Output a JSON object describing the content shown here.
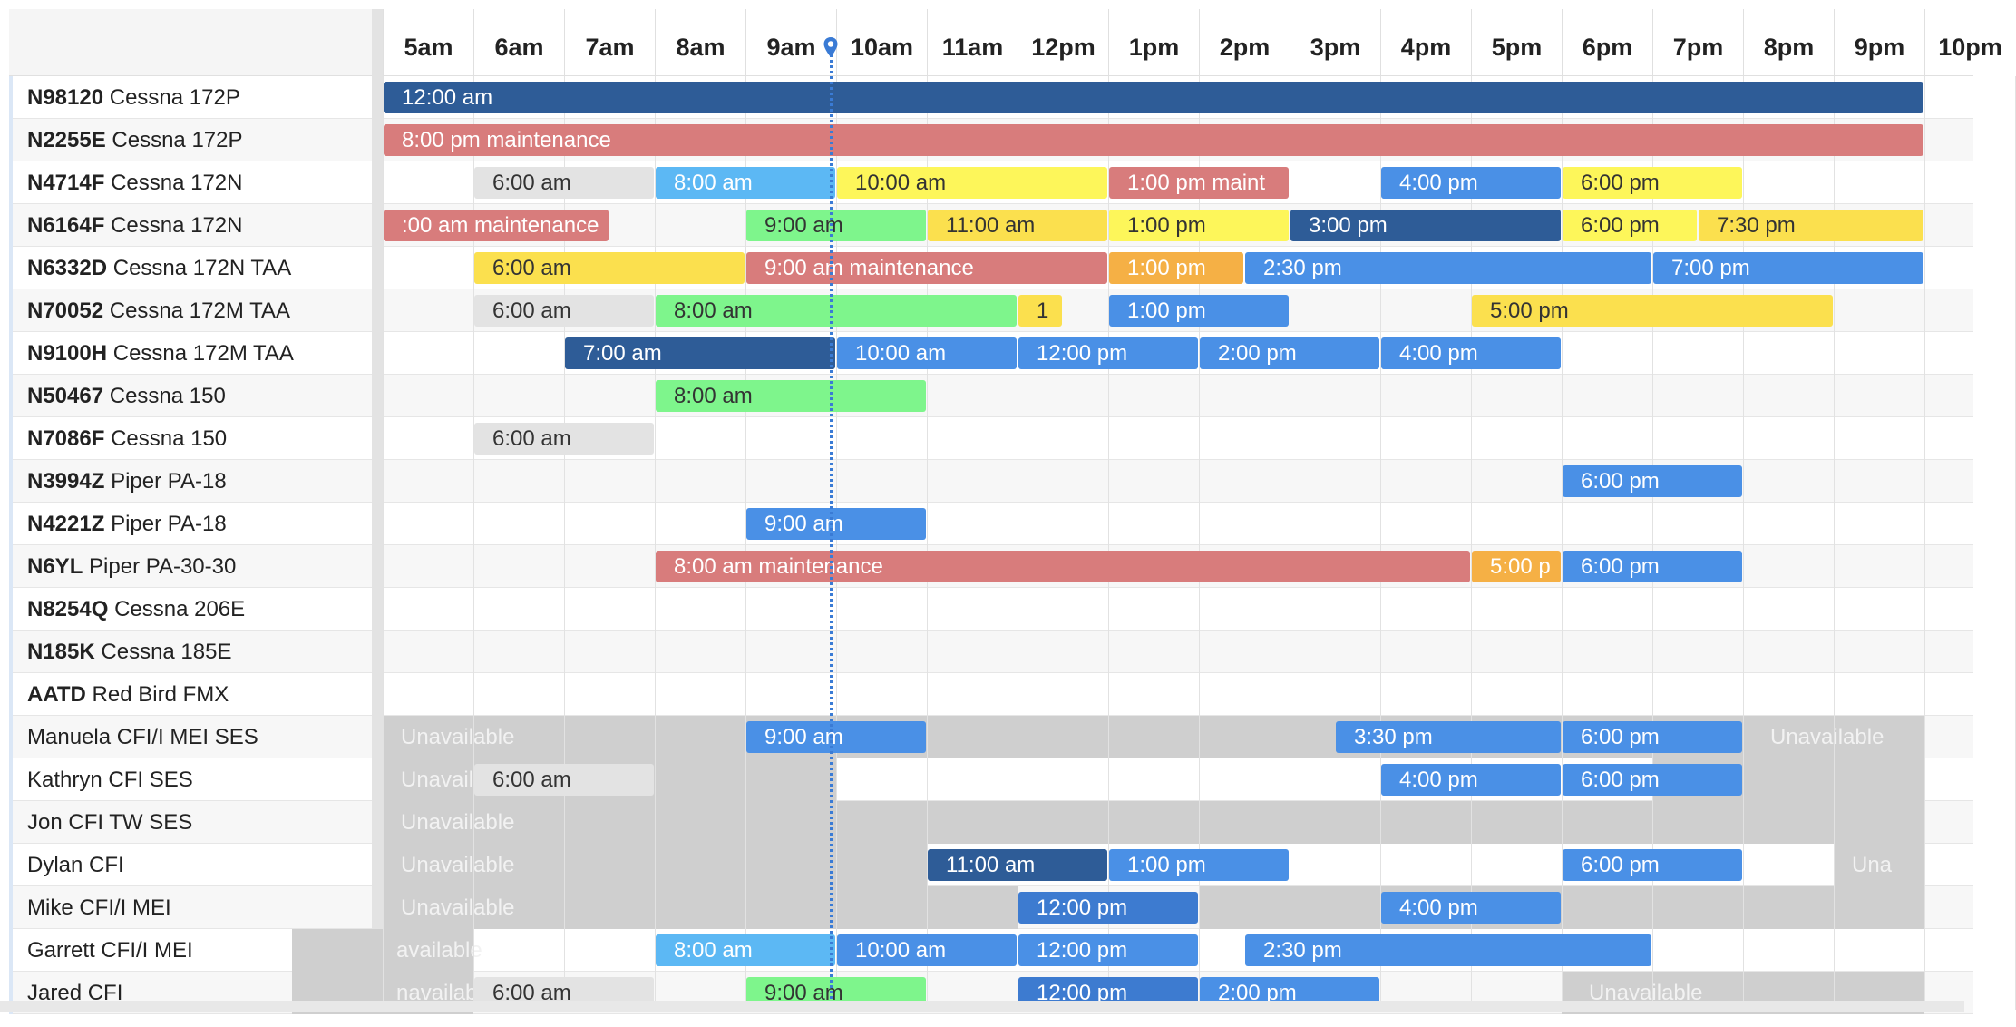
{
  "hours": [
    "5am",
    "6am",
    "7am",
    "8am",
    "9am",
    "10am",
    "11am",
    "12pm",
    "1pm",
    "2pm",
    "3pm",
    "4pm",
    "5pm",
    "6pm",
    "7pm",
    "8pm",
    "9pm",
    "10pm"
  ],
  "resources": [
    {
      "code": "N98120",
      "name": "Cessna 172P"
    },
    {
      "code": "N2255E",
      "name": "Cessna 172P"
    },
    {
      "code": "N4714F",
      "name": "Cessna 172N"
    },
    {
      "code": "N6164F",
      "name": "Cessna 172N"
    },
    {
      "code": "N6332D",
      "name": "Cessna 172N TAA"
    },
    {
      "code": "N70052",
      "name": "Cessna 172M TAA"
    },
    {
      "code": "N9100H",
      "name": "Cessna 172M TAA"
    },
    {
      "code": "N50467",
      "name": "Cessna 150"
    },
    {
      "code": "N7086F",
      "name": "Cessna 150"
    },
    {
      "code": "N3994Z",
      "name": "Piper PA-18"
    },
    {
      "code": "N4221Z",
      "name": "Piper PA-18"
    },
    {
      "code": "N6YL",
      "name": "Piper PA-30-30"
    },
    {
      "code": "N8254Q",
      "name": "Cessna 206E"
    },
    {
      "code": "N185K",
      "name": "Cessna 185E"
    },
    {
      "code": "AATD",
      "name": "Red Bird FMX"
    },
    {
      "code": "",
      "name": "Manuela CFI/I MEI SES"
    },
    {
      "code": "",
      "name": "Kathryn CFI SES"
    },
    {
      "code": "",
      "name": "Jon CFI TW SES"
    },
    {
      "code": "",
      "name": "Dylan CFI"
    },
    {
      "code": "",
      "name": "Mike CFI/I MEI"
    },
    {
      "code": "",
      "name": "Garrett CFI/I MEI"
    },
    {
      "code": "",
      "name": "Jared CFI"
    }
  ],
  "colors": {
    "navy": "#2e5c97",
    "salmon": "#d87c7c",
    "gray": "#e3e3e3",
    "sky": "#5cb8f4",
    "yellow": "#fdf65a",
    "blue": "#4a90e6",
    "gold": "#fbe04e",
    "green": "#7ef58c",
    "orange": "#f5b045",
    "mid": "#3d7bd0",
    "unavailable": "#cfcfcf",
    "now": "#3a7bd5"
  },
  "unavailable_label": "Unavailable",
  "unavailable": [
    {
      "row": 15,
      "start": 5,
      "end": 22,
      "labels": [
        {
          "text": "Unavailable",
          "at": 5
        },
        {
          "text": "Unavailable",
          "at": 20.1
        }
      ]
    },
    {
      "row": 16,
      "start": 5,
      "end": 10,
      "labels": [
        {
          "text": "Unavail",
          "at": 5
        }
      ]
    },
    {
      "row": 16,
      "start": 19,
      "end": 22,
      "labels": []
    },
    {
      "row": 17,
      "start": 5,
      "end": 22,
      "labels": [
        {
          "text": "Unavailable",
          "at": 5
        }
      ]
    },
    {
      "row": 18,
      "start": 5,
      "end": 11,
      "labels": [
        {
          "text": "Unavailable",
          "at": 5
        }
      ]
    },
    {
      "row": 18,
      "start": 21,
      "end": 22,
      "labels": [
        {
          "text": "Una",
          "at": 21
        }
      ]
    },
    {
      "row": 19,
      "start": 5,
      "end": 12,
      "labels": [
        {
          "text": "Unavailable",
          "at": 5
        }
      ]
    },
    {
      "row": 19,
      "start": 14,
      "end": 22,
      "labels": []
    },
    {
      "row": 20,
      "start": 4,
      "end": 6,
      "labels": [
        {
          "text": "available",
          "at": 4.95
        }
      ]
    },
    {
      "row": 21,
      "start": 4,
      "end": 6,
      "labels": [
        {
          "text": "navailable",
          "at": 4.95
        }
      ]
    },
    {
      "row": 21,
      "start": 18,
      "end": 22,
      "labels": [
        {
          "text": "Unavailable",
          "at": 18.1
        }
      ]
    }
  ],
  "events": [
    {
      "row": 0,
      "start": 5,
      "end": 22,
      "label": "12:00 am",
      "color": "navy",
      "text": "#ffffff"
    },
    {
      "row": 1,
      "start": 5,
      "end": 22,
      "label": "8:00 pm maintenance",
      "color": "salmon",
      "text": "#ffffff"
    },
    {
      "row": 2,
      "start": 6,
      "end": 8,
      "label": "6:00 am",
      "color": "gray",
      "text": "#333333"
    },
    {
      "row": 2,
      "start": 8,
      "end": 10,
      "label": "8:00 am",
      "color": "sky",
      "text": "#ffffff"
    },
    {
      "row": 2,
      "start": 10,
      "end": 13,
      "label": "10:00 am",
      "color": "yellow",
      "text": "#333333"
    },
    {
      "row": 2,
      "start": 13,
      "end": 15,
      "label": "1:00 pm maint",
      "color": "salmon",
      "text": "#ffffff"
    },
    {
      "row": 2,
      "start": 16,
      "end": 18,
      "label": "4:00 pm",
      "color": "blue",
      "text": "#ffffff"
    },
    {
      "row": 2,
      "start": 18,
      "end": 20,
      "label": "6:00 pm",
      "color": "yellow",
      "text": "#333333"
    },
    {
      "row": 3,
      "start": 5,
      "end": 7.5,
      "label": ":00 am maintenance",
      "color": "salmon",
      "text": "#ffffff"
    },
    {
      "row": 3,
      "start": 9,
      "end": 11,
      "label": "9:00 am",
      "color": "green",
      "text": "#333333"
    },
    {
      "row": 3,
      "start": 11,
      "end": 13,
      "label": "11:00 am",
      "color": "gold",
      "text": "#333333"
    },
    {
      "row": 3,
      "start": 13,
      "end": 15,
      "label": "1:00 pm",
      "color": "yellow",
      "text": "#333333"
    },
    {
      "row": 3,
      "start": 15,
      "end": 18,
      "label": "3:00 pm",
      "color": "navy",
      "text": "#ffffff"
    },
    {
      "row": 3,
      "start": 18,
      "end": 19.5,
      "label": "6:00 pm",
      "color": "yellow",
      "text": "#333333"
    },
    {
      "row": 3,
      "start": 19.5,
      "end": 22,
      "label": "7:30 pm",
      "color": "gold",
      "text": "#333333"
    },
    {
      "row": 4,
      "start": 6,
      "end": 9,
      "label": "6:00 am",
      "color": "gold",
      "text": "#333333"
    },
    {
      "row": 4,
      "start": 9,
      "end": 13,
      "label": "9:00 am maintenance",
      "color": "salmon",
      "text": "#ffffff"
    },
    {
      "row": 4,
      "start": 13,
      "end": 14.5,
      "label": "1:00 pm",
      "color": "orange",
      "text": "#ffffff"
    },
    {
      "row": 4,
      "start": 14.5,
      "end": 19,
      "label": "2:30 pm",
      "color": "blue",
      "text": "#ffffff"
    },
    {
      "row": 4,
      "start": 19,
      "end": 22,
      "label": "7:00 pm",
      "color": "blue",
      "text": "#ffffff"
    },
    {
      "row": 5,
      "start": 6,
      "end": 8,
      "label": "6:00 am",
      "color": "gray",
      "text": "#333333"
    },
    {
      "row": 5,
      "start": 8,
      "end": 12,
      "label": "8:00 am",
      "color": "green",
      "text": "#333333"
    },
    {
      "row": 5,
      "start": 12,
      "end": 12.5,
      "label": "1",
      "color": "gold",
      "text": "#333333"
    },
    {
      "row": 5,
      "start": 13,
      "end": 15,
      "label": "1:00 pm",
      "color": "blue",
      "text": "#ffffff"
    },
    {
      "row": 5,
      "start": 17,
      "end": 21,
      "label": "5:00 pm",
      "color": "gold",
      "text": "#333333"
    },
    {
      "row": 6,
      "start": 7,
      "end": 10,
      "label": "7:00 am",
      "color": "navy",
      "text": "#ffffff"
    },
    {
      "row": 6,
      "start": 10,
      "end": 12,
      "label": "10:00 am",
      "color": "blue",
      "text": "#ffffff"
    },
    {
      "row": 6,
      "start": 12,
      "end": 14,
      "label": "12:00 pm",
      "color": "blue",
      "text": "#ffffff"
    },
    {
      "row": 6,
      "start": 14,
      "end": 16,
      "label": "2:00 pm",
      "color": "blue",
      "text": "#ffffff"
    },
    {
      "row": 6,
      "start": 16,
      "end": 18,
      "label": "4:00 pm",
      "color": "blue",
      "text": "#ffffff"
    },
    {
      "row": 7,
      "start": 8,
      "end": 11,
      "label": "8:00 am",
      "color": "green",
      "text": "#333333"
    },
    {
      "row": 8,
      "start": 6,
      "end": 8,
      "label": "6:00 am",
      "color": "gray",
      "text": "#333333"
    },
    {
      "row": 9,
      "start": 18,
      "end": 20,
      "label": "6:00 pm",
      "color": "blue",
      "text": "#ffffff"
    },
    {
      "row": 10,
      "start": 9,
      "end": 11,
      "label": "9:00 am",
      "color": "blue",
      "text": "#ffffff"
    },
    {
      "row": 11,
      "start": 8,
      "end": 17,
      "label": "8:00 am maintenance",
      "color": "salmon",
      "text": "#ffffff"
    },
    {
      "row": 11,
      "start": 17,
      "end": 18,
      "label": "5:00 p",
      "color": "orange",
      "text": "#ffffff"
    },
    {
      "row": 11,
      "start": 18,
      "end": 20,
      "label": "6:00 pm",
      "color": "blue",
      "text": "#ffffff"
    },
    {
      "row": 15,
      "start": 9,
      "end": 11,
      "label": "9:00 am",
      "color": "blue",
      "text": "#ffffff"
    },
    {
      "row": 15,
      "start": 15.5,
      "end": 18,
      "label": "3:30 pm",
      "color": "blue",
      "text": "#ffffff"
    },
    {
      "row": 15,
      "start": 18,
      "end": 20,
      "label": "6:00 pm",
      "color": "blue",
      "text": "#ffffff"
    },
    {
      "row": 16,
      "start": 6,
      "end": 8,
      "label": "6:00 am",
      "color": "gray",
      "text": "#333333"
    },
    {
      "row": 16,
      "start": 16,
      "end": 18,
      "label": "4:00 pm",
      "color": "blue",
      "text": "#ffffff"
    },
    {
      "row": 16,
      "start": 18,
      "end": 20,
      "label": "6:00 pm",
      "color": "blue",
      "text": "#ffffff"
    },
    {
      "row": 18,
      "start": 11,
      "end": 13,
      "label": "11:00 am",
      "color": "navy",
      "text": "#ffffff"
    },
    {
      "row": 18,
      "start": 13,
      "end": 15,
      "label": "1:00 pm",
      "color": "blue",
      "text": "#ffffff"
    },
    {
      "row": 18,
      "start": 18,
      "end": 20,
      "label": "6:00 pm",
      "color": "blue",
      "text": "#ffffff"
    },
    {
      "row": 19,
      "start": 12,
      "end": 14,
      "label": "12:00 pm",
      "color": "mid",
      "text": "#ffffff"
    },
    {
      "row": 19,
      "start": 16,
      "end": 18,
      "label": "4:00 pm",
      "color": "blue",
      "text": "#ffffff"
    },
    {
      "row": 20,
      "start": 8,
      "end": 10,
      "label": "8:00 am",
      "color": "sky",
      "text": "#ffffff"
    },
    {
      "row": 20,
      "start": 10,
      "end": 12,
      "label": "10:00 am",
      "color": "blue",
      "text": "#ffffff"
    },
    {
      "row": 20,
      "start": 12,
      "end": 14,
      "label": "12:00 pm",
      "color": "blue",
      "text": "#ffffff"
    },
    {
      "row": 20,
      "start": 14.5,
      "end": 19,
      "label": "2:30 pm",
      "color": "blue",
      "text": "#ffffff"
    },
    {
      "row": 21,
      "start": 6,
      "end": 8,
      "label": "6:00 am",
      "color": "gray",
      "text": "#333333"
    },
    {
      "row": 21,
      "start": 9,
      "end": 11,
      "label": "9:00 am",
      "color": "green",
      "text": "#333333"
    },
    {
      "row": 21,
      "start": 12,
      "end": 14,
      "label": "12:00 pm",
      "color": "mid",
      "text": "#ffffff"
    },
    {
      "row": 21,
      "start": 14,
      "end": 16,
      "label": "2:00 pm",
      "color": "blue",
      "text": "#ffffff"
    }
  ],
  "now_hour": 9.93,
  "icons": {
    "now_marker": "location-pin-icon"
  }
}
